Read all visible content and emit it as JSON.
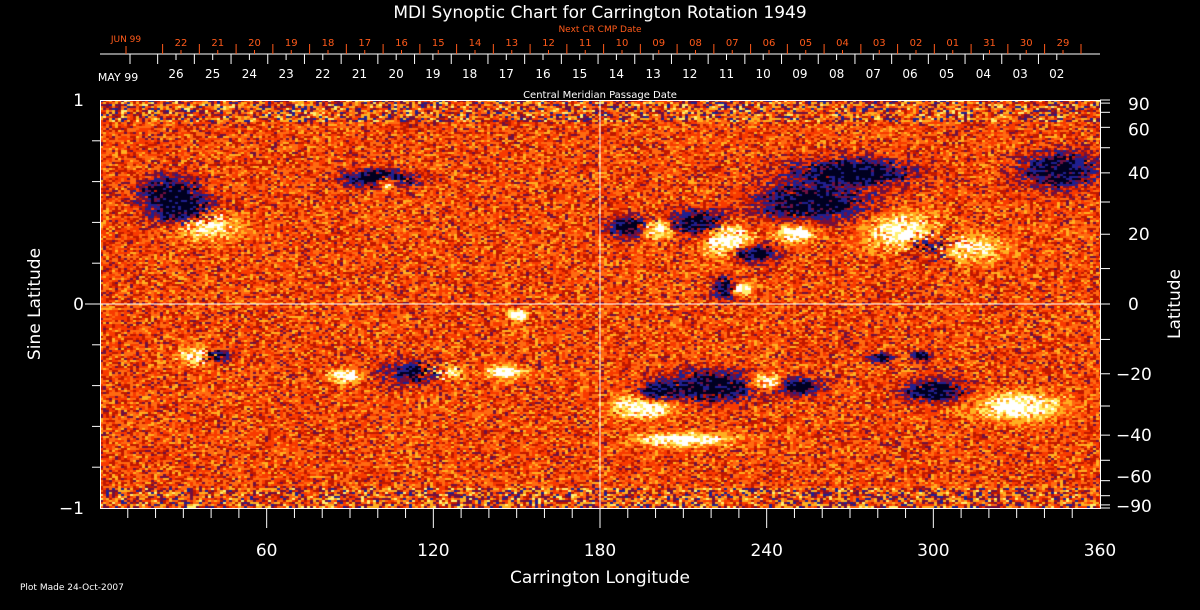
{
  "chart_data": {
    "type": "heatmap",
    "title": "MDI Synoptic Chart for Carrington Rotation 1949",
    "xlabel": "Carrington Longitude",
    "ylabel": "Sine Latitude",
    "y2label": "Latitude",
    "xlim": [
      0,
      360
    ],
    "ylim": [
      -1,
      1
    ],
    "x_ticks": [
      "60",
      "120",
      "180",
      "240",
      "300",
      "360"
    ],
    "x_tick_values": [
      60,
      120,
      180,
      240,
      300,
      360
    ],
    "y_ticks": [
      "1",
      "0",
      "−1"
    ],
    "y_tick_values": [
      1,
      0,
      -1
    ],
    "y2_ticks": [
      "90",
      "60",
      "40",
      "20",
      "0",
      "−20",
      "−40",
      "−60",
      "−90"
    ],
    "y2_tick_values": [
      90,
      60,
      40,
      20,
      0,
      -20,
      -40,
      -60,
      -90
    ],
    "top_axis": {
      "label": "Central Meridian Passage Date",
      "month_label": "MAY 99",
      "dates": [
        "26",
        "25",
        "24",
        "23",
        "22",
        "21",
        "20",
        "19",
        "18",
        "17",
        "16",
        "15",
        "14",
        "13",
        "12",
        "11",
        "10",
        "09",
        "08",
        "07",
        "06",
        "05",
        "04",
        "03",
        "02"
      ]
    },
    "next_cr_axis": {
      "label": "Next CR CMP Date",
      "month_label": "JUN 99",
      "dates": [
        "22",
        "21",
        "20",
        "19",
        "18",
        "17",
        "16",
        "15",
        "14",
        "13",
        "12",
        "11",
        "10",
        "09",
        "08",
        "07",
        "06",
        "05",
        "04",
        "03",
        "02",
        "01",
        "31",
        "30",
        "29"
      ]
    },
    "colors": {
      "background_field": "#ff4a10",
      "positive": "#ffffff",
      "negative": "#000040",
      "next_cr_axis": "#ff5a1a"
    }
  },
  "footer": "Plot Made 24-Oct-2007"
}
